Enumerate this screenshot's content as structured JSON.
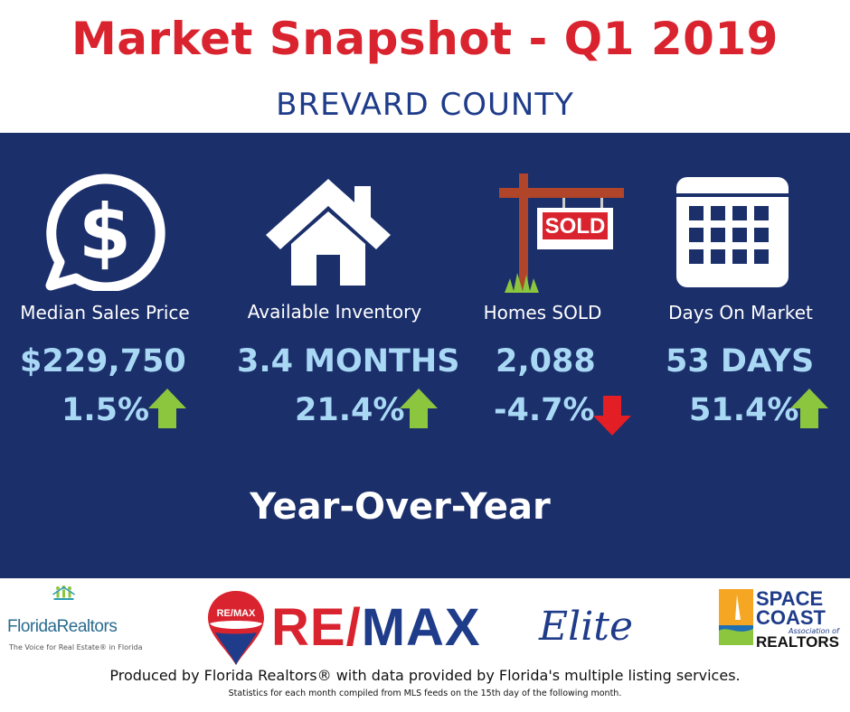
{
  "header": {
    "title": "Market Snapshot - Q1 2019",
    "subtitle": "BREVARD COUNTY"
  },
  "stats": [
    {
      "label": "Median Sales Price",
      "value": "$229,750",
      "change": "1.5%",
      "direction": "up",
      "icon": "dollar-chat-icon"
    },
    {
      "label": "Available Inventory",
      "value": "3.4 MONTHS",
      "change": "21.4%",
      "direction": "up",
      "icon": "house-icon"
    },
    {
      "label": "Homes SOLD",
      "value": "2,088",
      "change": "-4.7%",
      "direction": "down",
      "icon": "sold-sign-icon"
    },
    {
      "label": "Days On Market",
      "value": "53 DAYS",
      "change": "51.4%",
      "direction": "up",
      "icon": "calendar-icon"
    }
  ],
  "sold_sign_text": "SOLD",
  "period_label": "Year-Over-Year",
  "logos": {
    "florida_realtors": "FloridaRealtors",
    "florida_realtors_tagline": "The Voice for Real Estate® in Florida",
    "remax_balloon": "RE/MAX",
    "remax_left": "RE/",
    "remax_right": "MAX",
    "elite": "Elite",
    "space": "SPACE",
    "coast": "COAST",
    "association": "Association of",
    "realtors": "REALTORS"
  },
  "footer": {
    "line1": "Produced by Florida Realtors® with data provided by Florida's multiple listing services.",
    "line2": "Statistics for each month compiled from MLS feeds on the 15th day of the following month."
  },
  "colors": {
    "accent_red": "#d9242f",
    "brand_blue": "#1f3c8a",
    "panel_navy": "#1b2f6b",
    "value_light_blue": "#a9d8f5",
    "arrow_up_green": "#8cc63f",
    "arrow_down_red": "#e31e24"
  }
}
